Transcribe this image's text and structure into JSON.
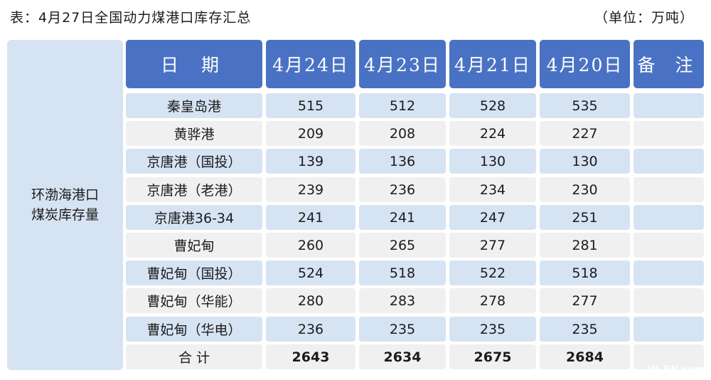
{
  "title": "表：4月27日全国动力煤港口库存汇总",
  "unit": "（单位：万吨）",
  "region_label": [
    "环渤海港口",
    "煤炭库存量"
  ],
  "headers": [
    "日 期",
    "4月24日",
    "4月23日",
    "4月21日",
    "4月20日",
    "备 注"
  ],
  "rows": [
    {
      "port": "秦皇岛港",
      "values": [
        "515",
        "512",
        "528",
        "535"
      ],
      "note": ""
    },
    {
      "port": "黄骅港",
      "values": [
        "209",
        "208",
        "224",
        "227"
      ],
      "note": ""
    },
    {
      "port": "京唐港（国投）",
      "values": [
        "139",
        "136",
        "130",
        "130"
      ],
      "note": ""
    },
    {
      "port": "京唐港（老港）",
      "values": [
        "239",
        "236",
        "234",
        "230"
      ],
      "note": ""
    },
    {
      "port": "京唐港36-34",
      "values": [
        "241",
        "241",
        "247",
        "251"
      ],
      "note": ""
    },
    {
      "port": "曹妃甸",
      "values": [
        "260",
        "265",
        "277",
        "281"
      ],
      "note": ""
    },
    {
      "port": "曹妃甸（国投）",
      "values": [
        "524",
        "518",
        "522",
        "518"
      ],
      "note": ""
    },
    {
      "port": "曹妃甸（华能）",
      "values": [
        "280",
        "283",
        "278",
        "277"
      ],
      "note": ""
    },
    {
      "port": "曹妃甸（华电）",
      "values": [
        "236",
        "235",
        "235",
        "235"
      ],
      "note": ""
    }
  ],
  "total": {
    "label": "合 计",
    "values": [
      "2643",
      "2634",
      "2675",
      "2684"
    ],
    "note": ""
  },
  "watermark": "IN-EN.com",
  "colors": {
    "header": "#4a72c4",
    "row_odd": "#d6e3f3",
    "row_even": "#f0f0f0"
  }
}
